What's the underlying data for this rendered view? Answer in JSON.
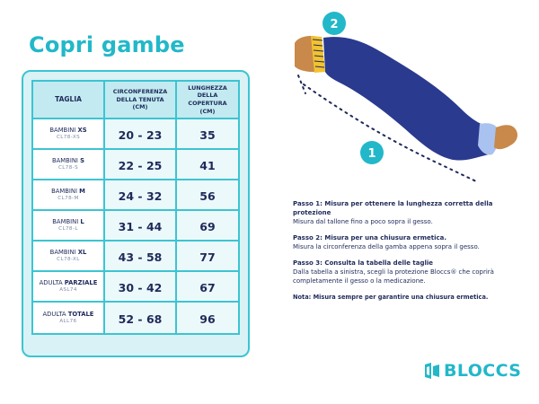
{
  "title": "Copri gambe",
  "table": {
    "headers": {
      "size": "TAGLIA",
      "circ_line1": "CIRCONFERENZA",
      "circ_line2": "DELLA TENUTA (CM)",
      "len_line1": "LUNGHEZZA DELLA",
      "len_line2": "COPERTURA (CM)"
    },
    "rows": [
      {
        "group": "BAMBINI",
        "size": "XS",
        "code": "CL78-XS",
        "circ": "20 - 23",
        "length": "35"
      },
      {
        "group": "BAMBINI",
        "size": "S",
        "code": "CL78-S",
        "circ": "22 - 25",
        "length": "41"
      },
      {
        "group": "BAMBINI",
        "size": "M",
        "code": "CL78-M",
        "circ": "24 - 32",
        "length": "56"
      },
      {
        "group": "BAMBINI",
        "size": "L",
        "code": "CL78-L",
        "circ": "31 - 44",
        "length": "69"
      },
      {
        "group": "BAMBINI",
        "size": "XL",
        "code": "CL78-XL",
        "circ": "43 - 58",
        "length": "77"
      },
      {
        "group": "ADULTA",
        "size": "PARZIALE",
        "code": "ASL74",
        "circ": "30 - 42",
        "length": "67"
      },
      {
        "group": "ADULTA",
        "size": "TOTALE",
        "code": "ALL76",
        "circ": "52 - 68",
        "length": "96"
      }
    ]
  },
  "illustration": {
    "marker_1": "1",
    "marker_2": "2",
    "leg_color": "#2a3a8f",
    "band_color": "#f2c230",
    "skin_color": "#c8894a",
    "accent": "#22b8c9"
  },
  "steps": [
    {
      "title": "Passo 1: Misura per ottenere la lunghezza corretta della protezione",
      "text": "Misura dal tallone fino a poco sopra il gesso."
    },
    {
      "title": "Passo 2: Misura per una chiusura ermetica.",
      "text": "Misura la circonferenza della gamba appena sopra il gesso."
    },
    {
      "title": "Passo 3: Consulta la tabella delle taglie",
      "text": "Dalla tabella a sinistra, scegli la protezione Bloccs® che coprirà completamente il gesso o la medicazione."
    }
  ],
  "note": "Nota: Misura sempre per garantire una chiusura ermetica.",
  "logo": {
    "text": "BLOCCS",
    "icon": "bloccs-logo-icon"
  }
}
